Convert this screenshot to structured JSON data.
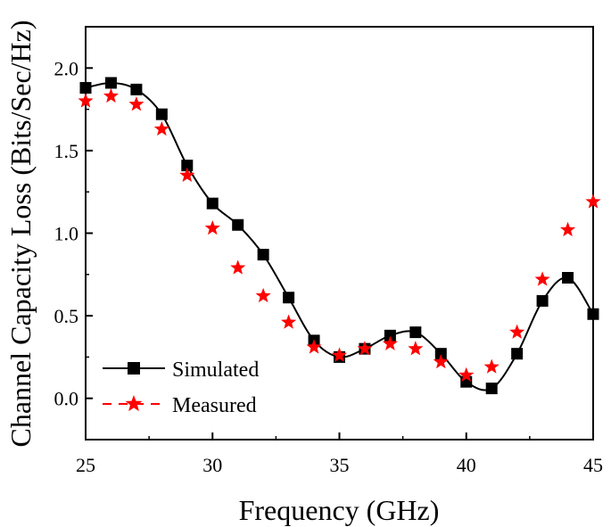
{
  "chart_data": {
    "type": "line",
    "title": "",
    "xlabel": "Frequency (GHz)",
    "ylabel": "Channel Capacity Loss (Bits/Sec/Hz)",
    "xlim": [
      25,
      45
    ],
    "ylim": [
      -0.25,
      2.25
    ],
    "xticks": [
      25,
      30,
      35,
      40,
      45
    ],
    "yticks": [
      0.0,
      0.5,
      1.0,
      1.5,
      2.0
    ],
    "xtick_labels": [
      "25",
      "30",
      "35",
      "40",
      "45"
    ],
    "ytick_labels": [
      "0.0",
      "0.5",
      "1.0",
      "1.5",
      "2.0"
    ],
    "legend_position": "bottom-left",
    "series": [
      {
        "name": "Simulated",
        "style": "line-square",
        "color": "#000000",
        "x": [
          25,
          26,
          27,
          28,
          29,
          30,
          31,
          32,
          33,
          34,
          35,
          36,
          37,
          38,
          39,
          40,
          41,
          42,
          43,
          44,
          45
        ],
        "values": [
          1.88,
          1.91,
          1.87,
          1.72,
          1.41,
          1.18,
          1.05,
          0.87,
          0.61,
          0.35,
          0.25,
          0.3,
          0.38,
          0.4,
          0.27,
          0.1,
          0.06,
          0.27,
          0.59,
          0.73,
          0.51
        ]
      },
      {
        "name": "Measured",
        "style": "star",
        "color": "#ff0000",
        "x": [
          25,
          26,
          27,
          28,
          29,
          30,
          31,
          32,
          33,
          34,
          35,
          36,
          37,
          38,
          39,
          40,
          41,
          42,
          43,
          44,
          45
        ],
        "values": [
          1.8,
          1.83,
          1.78,
          1.63,
          1.35,
          1.03,
          0.79,
          0.62,
          0.46,
          0.31,
          0.26,
          0.3,
          0.33,
          0.3,
          0.22,
          0.14,
          0.19,
          0.4,
          0.72,
          1.02,
          1.19
        ]
      }
    ]
  }
}
